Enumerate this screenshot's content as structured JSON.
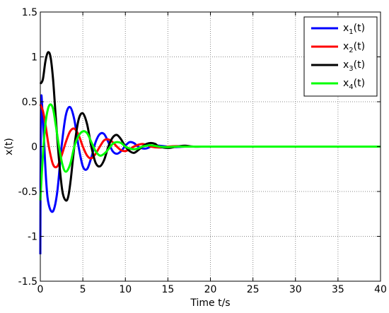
{
  "chart_data": {
    "type": "line",
    "xlabel": "Time t/s",
    "ylabel": "x(t)",
    "xlim": [
      0,
      40
    ],
    "ylim": [
      -1.5,
      1.5
    ],
    "xticks": [
      0,
      5,
      10,
      15,
      20,
      25,
      30,
      35,
      40
    ],
    "yticks": [
      -1.5,
      -1,
      -0.5,
      0,
      0.5,
      1,
      1.5
    ],
    "xtick_labels": [
      "0",
      "5",
      "10",
      "15",
      "20",
      "25",
      "30",
      "35",
      "40"
    ],
    "ytick_labels": [
      "-1.5",
      "-1",
      "-0.5",
      "0",
      "0.5",
      "1",
      "1.5"
    ],
    "grid": true,
    "legend_position": "top-right",
    "series": [
      {
        "label": "x",
        "subscript": "1",
        "suffix": "(t)",
        "color": "#0000ff",
        "x": [
          0,
          0.08,
          0.3,
          0.7,
          1.0,
          1.5,
          2.0,
          2.5,
          3.0,
          3.5,
          4.0,
          4.5,
          5.0,
          5.5,
          6.0,
          6.5,
          7.0,
          7.5,
          8.0,
          8.5,
          9.0,
          9.5,
          10.0,
          10.5,
          11.0,
          11.5,
          12.0,
          12.5,
          13.0,
          13.5,
          14.0,
          15.0,
          16.0,
          17.0,
          18.0,
          20.0,
          25.0,
          30.0,
          35.0,
          40.0
        ],
        "y": [
          -1.2,
          0.47,
          0.3,
          -0.4,
          -0.65,
          -0.72,
          -0.5,
          0.0,
          0.35,
          0.44,
          0.3,
          0.0,
          -0.22,
          -0.25,
          -0.12,
          0.05,
          0.14,
          0.14,
          0.05,
          -0.05,
          -0.08,
          -0.05,
          0.01,
          0.05,
          0.04,
          0.0,
          -0.02,
          -0.02,
          0.0,
          0.01,
          0.01,
          0.0,
          -0.005,
          0.0,
          0.0,
          0.0,
          0.0,
          0.0,
          0.0,
          0.0
        ]
      },
      {
        "label": "x",
        "subscript": "2",
        "suffix": "(t)",
        "color": "#ff0000",
        "x": [
          0,
          0.3,
          0.6,
          1.0,
          1.5,
          2.0,
          2.5,
          3.0,
          3.5,
          4.0,
          4.5,
          5.0,
          5.5,
          6.0,
          6.5,
          7.0,
          7.5,
          8.0,
          8.5,
          9.0,
          9.5,
          10.0,
          10.5,
          11.0,
          11.5,
          12.0,
          12.5,
          13.0,
          14.0,
          15.0,
          16.0,
          17.0,
          18.0,
          20.0,
          25.0,
          30.0,
          35.0,
          40.0
        ],
        "y": [
          0.47,
          0.4,
          0.25,
          0.0,
          -0.2,
          -0.22,
          -0.1,
          0.05,
          0.17,
          0.2,
          0.13,
          0.0,
          -0.1,
          -0.13,
          -0.08,
          0.0,
          0.07,
          0.08,
          0.05,
          0.0,
          -0.04,
          -0.05,
          -0.03,
          0.0,
          0.02,
          0.03,
          0.02,
          0.0,
          -0.01,
          0.0,
          0.005,
          0.0,
          0.0,
          0.0,
          0.0,
          0.0,
          0.0,
          0.0
        ]
      },
      {
        "label": "x",
        "subscript": "3",
        "suffix": "(t)",
        "color": "#000000",
        "x": [
          0,
          0.3,
          0.6,
          0.9,
          1.2,
          1.5,
          1.8,
          2.2,
          2.6,
          3.0,
          3.3,
          3.6,
          4.0,
          4.5,
          5.0,
          5.5,
          6.0,
          6.5,
          7.0,
          7.5,
          8.0,
          8.5,
          9.0,
          9.5,
          10.0,
          10.5,
          11.0,
          11.5,
          12.0,
          12.5,
          13.0,
          13.5,
          14.0,
          15.0,
          16.0,
          17.0,
          18.0,
          20.0,
          25.0,
          30.0,
          35.0,
          40.0
        ],
        "y": [
          0.7,
          0.75,
          0.95,
          1.05,
          1.0,
          0.75,
          0.35,
          -0.15,
          -0.5,
          -0.6,
          -0.55,
          -0.35,
          0.0,
          0.3,
          0.37,
          0.25,
          0.0,
          -0.18,
          -0.22,
          -0.15,
          0.0,
          0.1,
          0.13,
          0.08,
          0.0,
          -0.05,
          -0.07,
          -0.04,
          0.0,
          0.03,
          0.04,
          0.03,
          0.0,
          -0.015,
          0.0,
          0.01,
          0.0,
          0.0,
          0.0,
          0.0,
          0.0,
          0.0
        ]
      },
      {
        "label": "x",
        "subscript": "4",
        "suffix": "(t)",
        "color": "#00ff00",
        "x": [
          0,
          0.3,
          0.6,
          0.9,
          1.2,
          1.5,
          1.8,
          2.2,
          2.6,
          3.0,
          3.5,
          4.0,
          4.5,
          5.0,
          5.5,
          6.0,
          6.5,
          7.0,
          7.5,
          8.0,
          8.5,
          9.0,
          9.5,
          10.0,
          10.5,
          11.0,
          11.5,
          12.0,
          12.5,
          13.0,
          14.0,
          15.0,
          16.0,
          17.0,
          18.0,
          20.0,
          25.0,
          30.0,
          35.0,
          40.0
        ],
        "y": [
          -0.6,
          -0.1,
          0.25,
          0.42,
          0.47,
          0.42,
          0.25,
          0.0,
          -0.2,
          -0.28,
          -0.2,
          0.0,
          0.12,
          0.17,
          0.15,
          0.05,
          -0.05,
          -0.1,
          -0.08,
          -0.03,
          0.03,
          0.05,
          0.04,
          0.0,
          -0.02,
          -0.03,
          -0.02,
          0.0,
          0.01,
          0.015,
          0.0,
          -0.005,
          0.0,
          0.0,
          0.0,
          0.0,
          0.0,
          0.0,
          0.0,
          0.0
        ]
      }
    ]
  }
}
